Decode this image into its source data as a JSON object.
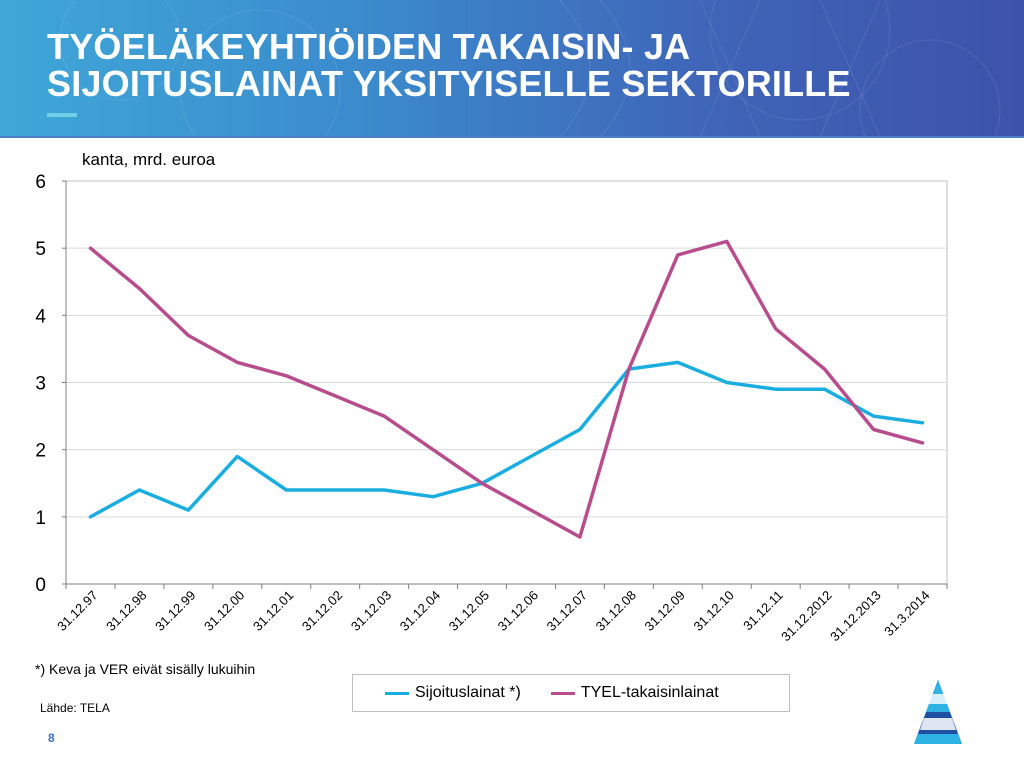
{
  "header": {
    "title_line1": "TYÖELÄKEYHTIÖIDEN TAKAISIN- JA",
    "title_line2": "SIJOITUSLAINAT YKSITYISELLE SEKTORILLE"
  },
  "footnote": "*) Keva ja VER eivät sisälly lukuihin",
  "source": "Lähde: TELA",
  "page_number": "8",
  "colors": {
    "sijoituslainat": "#1aaee0",
    "takaisinlainat": "#b74d8c"
  },
  "chart_data": {
    "type": "line",
    "title": "",
    "ylabel": "kanta, mrd. euroa",
    "xlabel": "",
    "ylim": [
      0,
      6
    ],
    "yticks": [
      "0",
      "1",
      "2",
      "3",
      "4",
      "5",
      "6"
    ],
    "grid": true,
    "legend_position": "bottom",
    "categories": [
      "31.12.97",
      "31.12.98",
      "31.12.99",
      "31.12.00",
      "31.12.01",
      "31.12.02",
      "31.12.03",
      "31.12.04",
      "31.12.05",
      "31.12.06",
      "31.12.07",
      "31.12.08",
      "31.12.09",
      "31.12.10",
      "31.12.11",
      "31.12.2012",
      "31.12.2013",
      "31.3.2014"
    ],
    "series": [
      {
        "name": "Sijoituslainat *)",
        "color": "#1aaee0",
        "values": [
          1.0,
          1.4,
          1.1,
          1.9,
          1.4,
          1.4,
          1.4,
          1.3,
          1.5,
          1.9,
          2.3,
          3.2,
          3.3,
          3.0,
          2.9,
          2.9,
          2.5,
          2.4
        ]
      },
      {
        "name": "TYEL-takaisinlainat",
        "color": "#b74d8c",
        "values": [
          5.0,
          4.4,
          3.7,
          3.3,
          3.1,
          2.8,
          2.5,
          2.0,
          1.5,
          1.1,
          0.7,
          3.2,
          4.9,
          5.1,
          3.8,
          3.2,
          2.3,
          2.1
        ]
      }
    ]
  }
}
